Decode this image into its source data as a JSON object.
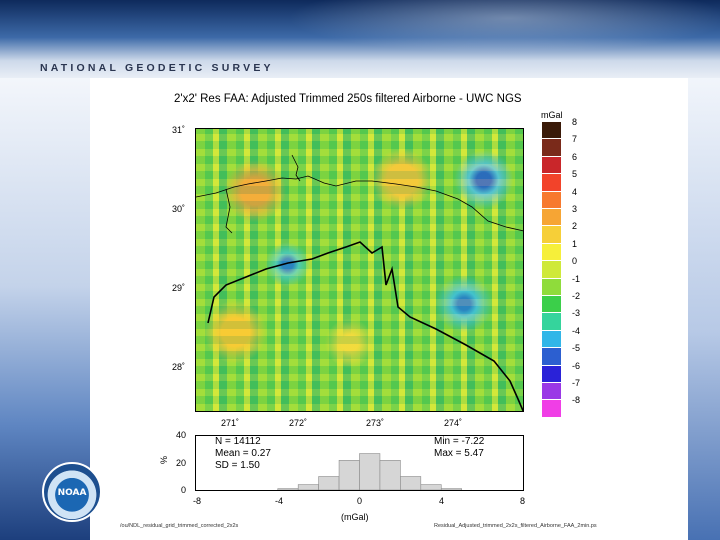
{
  "header": {
    "agency": "NATIONAL GEODETIC SURVEY",
    "logo_text": "NOAA"
  },
  "map": {
    "title": "2'x2' Res FAA: Adjusted Trimmed 250s filtered Airborne - UWC NGS",
    "lat_labels": [
      "31˚",
      "30˚",
      "29˚",
      "28˚"
    ],
    "lon_labels": [
      "271˚",
      "272˚",
      "273˚",
      "274˚"
    ]
  },
  "legend": {
    "unit": "mGal",
    "values": [
      "8",
      "7",
      "6",
      "5",
      "4",
      "3",
      "2",
      "1",
      "0",
      "-1",
      "-2",
      "-3",
      "-4",
      "-5",
      "-6",
      "-7",
      "-8"
    ],
    "colors": [
      "#3a1a08",
      "#7a2a1a",
      "#c9262a",
      "#f2432a",
      "#f7792e",
      "#f6a534",
      "#f6cf38",
      "#f6ef3a",
      "#cfe93a",
      "#8fdc3b",
      "#3bcf4a",
      "#35d49c",
      "#31b6e8",
      "#2c5fd0",
      "#2a22d8",
      "#9a38e6",
      "#f03ee6"
    ]
  },
  "histogram": {
    "y_labels": [
      "40",
      "20",
      "0"
    ],
    "y_unit": "%",
    "x_labels": [
      "-8",
      "-4",
      "0",
      "4",
      "8"
    ],
    "x_label": "(mGal)",
    "stats_left": [
      "N = 14112",
      "Mean = 0.27",
      "SD = 1.50"
    ],
    "stats_right": [
      "Min = -7.22",
      "Max = 5.47"
    ]
  },
  "chart_data": {
    "type": "bar",
    "categories": [
      "-6",
      "-5",
      "-4",
      "-3",
      "-2",
      "-1",
      "0",
      "1",
      "2",
      "3",
      "4",
      "5"
    ],
    "values": [
      0,
      0,
      1,
      4,
      10,
      22,
      27,
      22,
      10,
      4,
      1,
      0
    ],
    "xlabel": "(mGal)",
    "ylabel": "%",
    "ylim": [
      0,
      40
    ],
    "xlim": [
      -8,
      8
    ],
    "grid": false
  },
  "footer": {
    "left": "/ou/NDL_residual_grid_trimmed_corrected_2x2s",
    "right": "Residual_Adjusted_trimmed_2x2s_filtered_Airborne_FAA_2min.ps"
  }
}
